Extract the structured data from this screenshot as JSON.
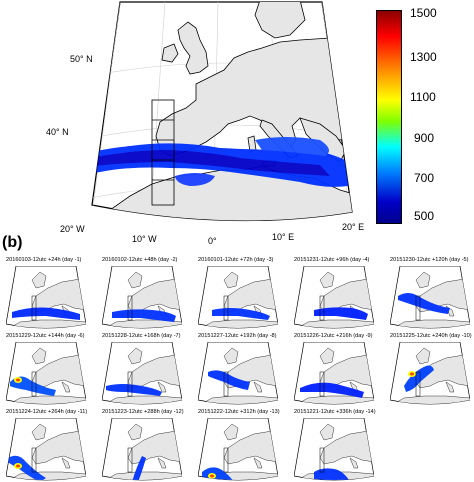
{
  "panel_a": {
    "lat_labels": [
      "50° N",
      "40° N"
    ],
    "lon_labels": [
      "20° W",
      "10° W",
      "0°",
      "10° E",
      "20° E"
    ]
  },
  "colorbar": {
    "ticks": [
      "1500",
      "1300",
      "1100",
      "900",
      "700",
      "500"
    ],
    "colors": [
      "#8b0000",
      "#ff0000",
      "#ff8c00",
      "#ffff00",
      "#7fff00",
      "#00ffff",
      "#0080ff",
      "#0000c8",
      "#00008b"
    ]
  },
  "panel_b": {
    "label": "(b)",
    "runs": [
      {
        "title": "20160103-12utc +24h (day -1)"
      },
      {
        "title": "20160102-12utc +48h (day -2)"
      },
      {
        "title": "20160101-12utc +72h (day -3)"
      },
      {
        "title": "20151231-12utc +96h (day -4)"
      },
      {
        "title": "20151230-12utc +120h (day -5)"
      },
      {
        "title": "20151229-12utc +144h (day -6)"
      },
      {
        "title": "20151228-12utc +168h (day -7)"
      },
      {
        "title": "20151227-12utc +192h (day -8)"
      },
      {
        "title": "20151226-12utc +216h (day -9)"
      },
      {
        "title": "20151225-12utc +240h (day -10)"
      },
      {
        "title": "20151224-12utc +264h (day -11)"
      },
      {
        "title": "20151223-12utc +288h (day -12)"
      },
      {
        "title": "20151222-12utc +312h (day -13)"
      },
      {
        "title": "20151221-12utc +336h (day -14)"
      }
    ]
  }
}
